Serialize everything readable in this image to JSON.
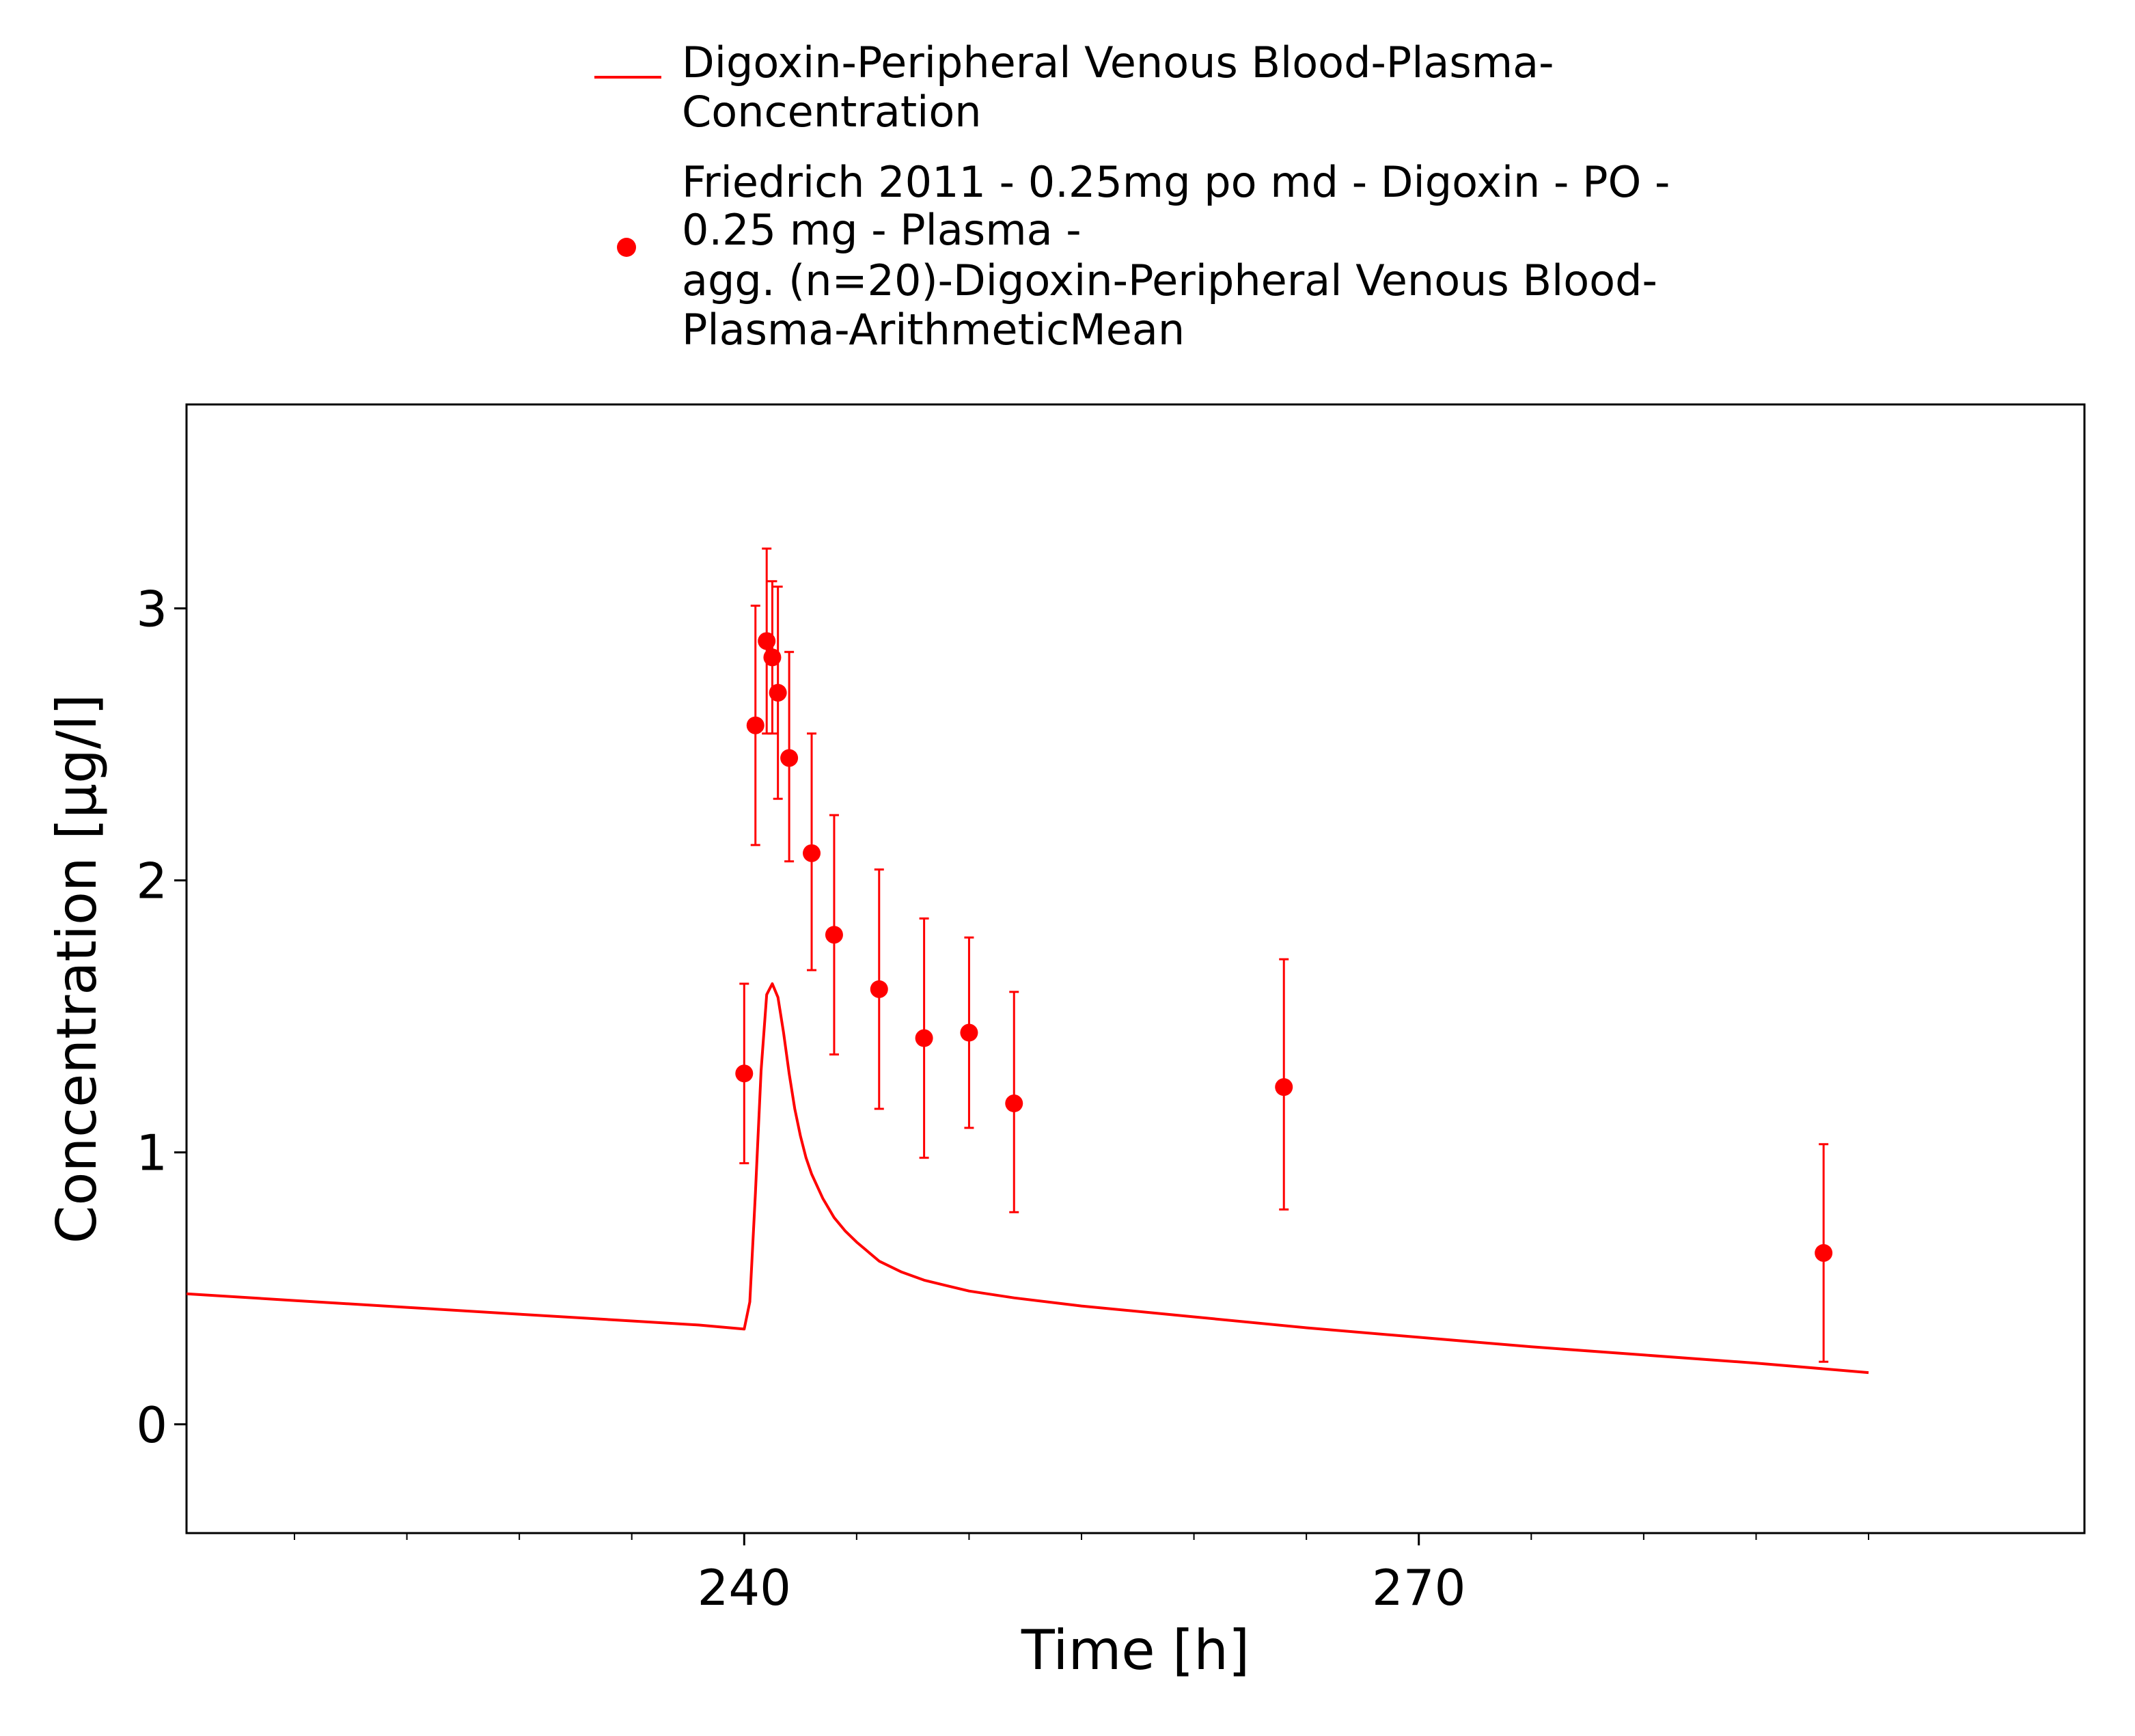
{
  "chart_data": {
    "type": "line",
    "title": "",
    "xlabel": "Time [h]",
    "ylabel": "Concentration [µg/l]",
    "xlim": [
      215.2,
      299.6
    ],
    "ylim": [
      -0.4,
      3.75
    ],
    "x_ticks": [
      240,
      270
    ],
    "x_tick_labels": [
      "240",
      "270"
    ],
    "x_minor_ticks": [
      220,
      225,
      230,
      235,
      245,
      250,
      255,
      260,
      265,
      275,
      280,
      285,
      290
    ],
    "y_ticks": [
      0,
      1,
      2,
      3
    ],
    "y_tick_labels": [
      "0",
      "1",
      "2",
      "3"
    ],
    "grid": false,
    "legend_position": "top",
    "colors": {
      "series": "#ff0000"
    },
    "legend": {
      "simulated_lines": [
        "Digoxin-Peripheral Venous Blood-Plasma-",
        "Concentration"
      ],
      "observed_lines": [
        "Friedrich 2011 - 0.25mg po md - Digoxin - PO -",
        "0.25 mg - Plasma -",
        "agg. (n=20)-Digoxin-Peripheral Venous Blood-",
        "Plasma-ArithmeticMean"
      ]
    },
    "series": [
      {
        "name": "Digoxin-Peripheral Venous Blood-Plasma-Concentration",
        "kind": "line",
        "x": [
          215.2,
          220,
          225,
          230,
          235,
          238,
          240,
          240.25,
          240.5,
          240.75,
          241,
          241.25,
          241.5,
          241.75,
          242,
          242.25,
          242.5,
          242.75,
          243,
          243.5,
          244,
          244.5,
          245,
          246,
          247,
          248,
          249,
          250,
          252,
          255,
          260,
          265,
          270,
          275,
          280,
          285,
          290
        ],
        "y": [
          0.48,
          0.455,
          0.43,
          0.405,
          0.38,
          0.365,
          0.35,
          0.45,
          0.85,
          1.3,
          1.58,
          1.62,
          1.57,
          1.44,
          1.29,
          1.16,
          1.06,
          0.98,
          0.92,
          0.83,
          0.76,
          0.71,
          0.67,
          0.6,
          0.56,
          0.53,
          0.51,
          0.49,
          0.465,
          0.435,
          0.395,
          0.355,
          0.32,
          0.285,
          0.255,
          0.225,
          0.19
        ]
      },
      {
        "name": "Friedrich 2011 - 0.25mg po md - Digoxin - PO - 0.25 mg - Plasma - agg. (n=20)-Digoxin-Peripheral Venous Blood-Plasma-ArithmeticMean",
        "kind": "scatter_errorbar",
        "x": [
          240.0,
          240.5,
          241.0,
          241.25,
          241.5,
          242.0,
          243.0,
          244.0,
          246.0,
          248.0,
          250.0,
          252.0,
          264.0,
          288.0
        ],
        "y": [
          1.29,
          2.57,
          2.88,
          2.82,
          2.69,
          2.45,
          2.1,
          1.8,
          1.6,
          1.42,
          1.44,
          1.18,
          1.24,
          0.63
        ],
        "y_lower": [
          0.96,
          2.13,
          2.54,
          2.54,
          2.3,
          2.07,
          1.67,
          1.36,
          1.16,
          0.98,
          1.09,
          0.78,
          0.79,
          0.23
        ],
        "y_upper": [
          1.62,
          3.01,
          3.22,
          3.1,
          3.08,
          2.84,
          2.54,
          2.24,
          2.04,
          1.86,
          1.79,
          1.59,
          1.71,
          1.03
        ]
      }
    ]
  }
}
